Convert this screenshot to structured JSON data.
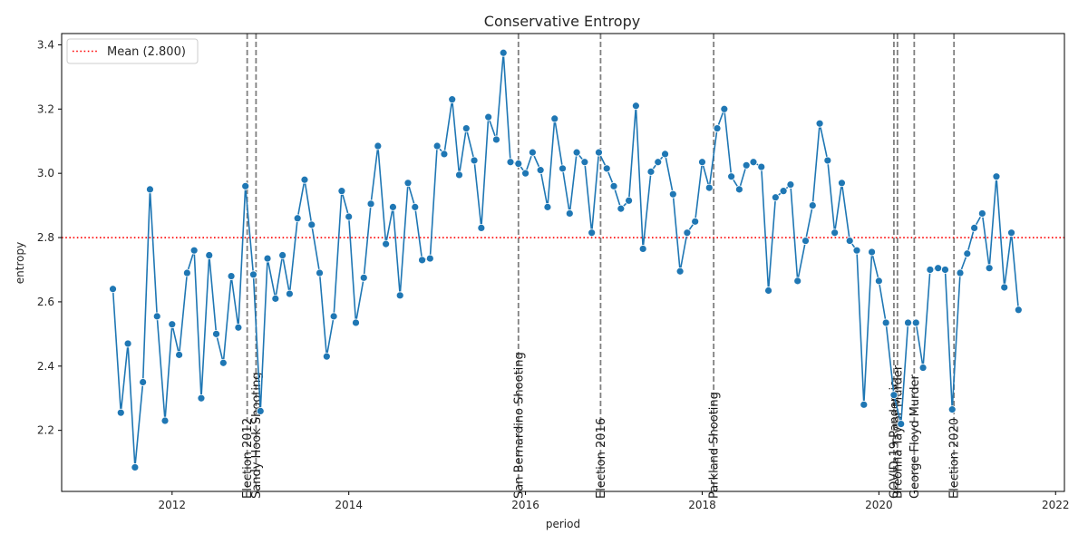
{
  "chart_data": {
    "type": "line",
    "title": "Conservative Entropy",
    "xlabel": "period",
    "ylabel": "entropy",
    "xlim": [
      2010.75,
      2022.1
    ],
    "ylim": [
      2.01,
      3.435
    ],
    "x_ticks": [
      2012,
      2014,
      2016,
      2018,
      2020,
      2022
    ],
    "x_tick_labels": [
      "2012",
      "2014",
      "2016",
      "2018",
      "2020",
      "2022"
    ],
    "y_ticks": [
      2.2,
      2.4,
      2.6,
      2.8,
      3.0,
      3.2,
      3.4
    ],
    "y_tick_labels": [
      "2.2",
      "2.4",
      "2.6",
      "2.8",
      "3.0",
      "3.2",
      "3.4"
    ],
    "grid": false,
    "legend_position": "top-left",
    "colors": {
      "line": "#1f77b4",
      "mean": "#ff0000",
      "events": "#808080"
    },
    "series": [
      {
        "name": "entropy",
        "x": [
          2011.33,
          2011.42,
          2011.5,
          2011.58,
          2011.67,
          2011.75,
          2011.83,
          2011.92,
          2012.0,
          2012.08,
          2012.17,
          2012.25,
          2012.33,
          2012.42,
          2012.5,
          2012.58,
          2012.67,
          2012.75,
          2012.83,
          2012.92,
          2013.0,
          2013.08,
          2013.17,
          2013.25,
          2013.33,
          2013.42,
          2013.5,
          2013.58,
          2013.67,
          2013.75,
          2013.83,
          2013.92,
          2014.0,
          2014.08,
          2014.17,
          2014.25,
          2014.33,
          2014.42,
          2014.5,
          2014.58,
          2014.67,
          2014.75,
          2014.83,
          2014.92,
          2015.0,
          2015.08,
          2015.17,
          2015.25,
          2015.33,
          2015.42,
          2015.5,
          2015.58,
          2015.67,
          2015.75,
          2015.83,
          2015.92,
          2016.0,
          2016.08,
          2016.17,
          2016.25,
          2016.33,
          2016.42,
          2016.5,
          2016.58,
          2016.67,
          2016.75,
          2016.83,
          2016.92,
          2017.0,
          2017.08,
          2017.17,
          2017.25,
          2017.33,
          2017.42,
          2017.5,
          2017.58,
          2017.67,
          2017.75,
          2017.83,
          2017.92,
          2018.0,
          2018.08,
          2018.17,
          2018.25,
          2018.33,
          2018.42,
          2018.5,
          2018.58,
          2018.67,
          2018.75,
          2018.83,
          2018.92,
          2019.0,
          2019.08,
          2019.17,
          2019.25,
          2019.33,
          2019.42,
          2019.5,
          2019.58,
          2019.67,
          2019.75,
          2019.83,
          2019.92,
          2020.0,
          2020.08,
          2020.17,
          2020.25,
          2020.33,
          2020.42,
          2020.5,
          2020.58,
          2020.67,
          2020.75,
          2020.83,
          2020.92,
          2021.0,
          2021.08,
          2021.17,
          2021.25,
          2021.33,
          2021.42,
          2021.5,
          2021.58
        ],
        "values": [
          2.64,
          2.255,
          2.47,
          2.085,
          2.35,
          2.95,
          2.555,
          2.23,
          2.53,
          2.435,
          2.69,
          2.76,
          2.3,
          2.745,
          2.5,
          2.41,
          2.68,
          2.52,
          2.96,
          2.685,
          2.26,
          2.735,
          2.61,
          2.745,
          2.625,
          2.86,
          2.98,
          2.84,
          2.69,
          2.43,
          2.555,
          2.945,
          2.865,
          2.535,
          2.675,
          2.905,
          3.085,
          2.78,
          2.895,
          2.62,
          2.97,
          2.895,
          2.73,
          2.735,
          3.085,
          3.06,
          3.23,
          2.995,
          3.14,
          3.04,
          2.83,
          3.175,
          3.105,
          3.375,
          3.035,
          3.03,
          3.0,
          3.065,
          3.01,
          2.895,
          3.17,
          3.015,
          2.875,
          3.065,
          3.035,
          2.815,
          3.065,
          3.015,
          2.96,
          2.89,
          2.915,
          3.21,
          2.765,
          3.005,
          3.035,
          3.06,
          2.935,
          2.695,
          2.815,
          2.85,
          3.035,
          2.955,
          3.14,
          3.2,
          2.99,
          2.95,
          3.025,
          3.035,
          3.02,
          2.635,
          2.925,
          2.945,
          2.965,
          2.665,
          2.79,
          2.9,
          3.155,
          3.04,
          2.815,
          2.97,
          2.79,
          2.76,
          2.28,
          2.755,
          2.665,
          2.535,
          2.31,
          2.22,
          2.535,
          2.535,
          2.395,
          2.7,
          2.705,
          2.7,
          2.265,
          2.69,
          2.75,
          2.83,
          2.875,
          2.705,
          2.99,
          2.645,
          2.815,
          2.575
        ]
      }
    ],
    "mean_line": {
      "value": 2.8,
      "label": "Mean (2.800)"
    },
    "events": [
      {
        "x": 2012.85,
        "label": "Election 2012"
      },
      {
        "x": 2012.95,
        "label": "Sandy Hook Shooting"
      },
      {
        "x": 2015.92,
        "label": "San Bernardino Shooting"
      },
      {
        "x": 2016.85,
        "label": "Election 2016"
      },
      {
        "x": 2018.13,
        "label": "Parkland Shooting"
      },
      {
        "x": 2020.17,
        "label": "COVID-19 Pandemic"
      },
      {
        "x": 2020.21,
        "label": "Breonna Taylor Murder"
      },
      {
        "x": 2020.4,
        "label": "George Floyd Murder"
      },
      {
        "x": 2020.85,
        "label": "Election 2020"
      }
    ]
  }
}
